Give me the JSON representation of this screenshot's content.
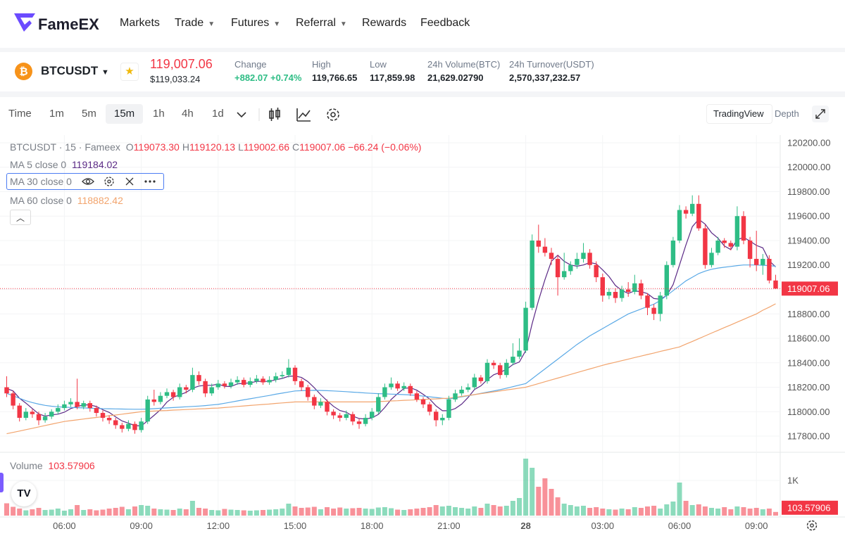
{
  "nav": {
    "brand": "FameEX",
    "items": [
      "Markets",
      "Trade",
      "Futures",
      "Referral",
      "Rewards",
      "Feedback"
    ]
  },
  "ticker": {
    "symbol": "BTCUSDT",
    "price": "119,007.06",
    "price_usd": "$119,033.24",
    "change_label": "Change",
    "change_value": "+882.07",
    "change_pct": "+0.74%",
    "stats": [
      {
        "label": "High",
        "value": "119,766.65"
      },
      {
        "label": "Low",
        "value": "117,859.98"
      },
      {
        "label": "24h Volume(BTC)",
        "value": "21,629.02790"
      },
      {
        "label": "24h Turnover(USDT)",
        "value": "2,570,337,232.57"
      }
    ]
  },
  "toolbar": {
    "intervals": [
      "Time",
      "1m",
      "5m",
      "15m",
      "1h",
      "4h",
      "1d"
    ],
    "views": [
      "TradingView",
      "Depth"
    ]
  },
  "chart_data": {
    "type": "candlestick",
    "title": "BTCUSDT · 15 · Fameex",
    "ohlc_legend": [
      {
        "key": "O",
        "value": "119073.30"
      },
      {
        "key": "H",
        "value": "119120.13"
      },
      {
        "key": "L",
        "value": "119002.66"
      },
      {
        "key": "C",
        "value": "119007.06"
      }
    ],
    "change": "−66.24 (−0.06%)",
    "up_color": "#2ebd85",
    "down_color": "#f23645",
    "candles": {
      "open": [
        118200,
        118150,
        118050,
        117950,
        118000,
        117980,
        117930,
        117960,
        118000,
        118030,
        118060,
        118080,
        118040,
        118070,
        118030,
        117990,
        117950,
        117930,
        117890,
        117860,
        117900,
        117850,
        117920,
        118100,
        118080,
        118130,
        118160,
        118120,
        118200,
        118180,
        118300,
        118250,
        118150,
        118200,
        118230,
        118210,
        118240,
        118260,
        118220,
        118250,
        118270,
        118240,
        118260,
        118290,
        118300,
        118360,
        118250,
        118200,
        118120,
        118050,
        118080,
        118000,
        117970,
        117950,
        117980,
        117920,
        117900,
        117950,
        118000,
        118120,
        118200,
        118230,
        118190,
        118210,
        118150,
        118100,
        118060,
        118000,
        117930,
        117950,
        118100,
        118150,
        118180,
        118200,
        118280,
        118250,
        118400,
        118380,
        118300,
        118400,
        118450,
        118500,
        118850,
        119400,
        119350,
        119300,
        119250,
        119100,
        119150,
        119200,
        119250,
        119300,
        119200,
        119100,
        118950,
        118980,
        118930,
        119000,
        118980,
        119050,
        118950,
        118850,
        118800,
        118950,
        119200,
        119400,
        119650,
        119620,
        119700,
        119500,
        119200,
        119300,
        119400,
        119380,
        119350,
        119600,
        119400,
        119250,
        119200,
        119250,
        119073.3
      ],
      "high": [
        118290,
        118170,
        118070,
        118030,
        118020,
        118000,
        117990,
        118020,
        118060,
        118090,
        118110,
        118270,
        118090,
        118090,
        118050,
        118010,
        117970,
        117950,
        117910,
        117930,
        117920,
        117950,
        118130,
        118180,
        118160,
        118190,
        118180,
        118230,
        118220,
        118360,
        118330,
        118270,
        118230,
        118260,
        118250,
        118270,
        118290,
        118280,
        118280,
        118300,
        118290,
        118290,
        118320,
        118330,
        118430,
        118380,
        118270,
        118220,
        118140,
        118110,
        118100,
        118020,
        117990,
        118010,
        118000,
        117940,
        117980,
        118030,
        118150,
        118230,
        118280,
        118250,
        118240,
        118230,
        118170,
        118120,
        118080,
        118020,
        117980,
        118130,
        118180,
        118210,
        118230,
        118310,
        118300,
        118430,
        118420,
        118400,
        118430,
        118560,
        118600,
        118900,
        119450,
        119530,
        119420,
        119340,
        119280,
        119300,
        119230,
        119300,
        119380,
        119330,
        119230,
        119130,
        119010,
        119010,
        119030,
        119060,
        119120,
        119080,
        118970,
        118880,
        118980,
        119230,
        119430,
        119690,
        119680,
        119770,
        119770,
        119530,
        119340,
        119430,
        119420,
        119400,
        119680,
        119640,
        119430,
        119480,
        119290,
        119280,
        119120.13
      ],
      "low": [
        118120,
        118020,
        117920,
        117930,
        117950,
        117890,
        117910,
        117940,
        117980,
        118010,
        118040,
        118020,
        118020,
        118000,
        117960,
        117920,
        117900,
        117860,
        117830,
        117840,
        117820,
        117830,
        117900,
        118050,
        118060,
        118110,
        118090,
        118100,
        118150,
        118160,
        118220,
        118120,
        118130,
        118180,
        118190,
        118190,
        118220,
        118200,
        118200,
        118230,
        118220,
        118220,
        118240,
        118270,
        118280,
        118220,
        118170,
        118090,
        118020,
        118030,
        117970,
        117940,
        117920,
        117930,
        117890,
        117860,
        117880,
        117930,
        117980,
        118100,
        118180,
        118170,
        118170,
        118130,
        118080,
        118030,
        117970,
        117880,
        117890,
        117930,
        118080,
        118130,
        118160,
        118180,
        118230,
        118230,
        118350,
        118270,
        118280,
        118380,
        118430,
        118480,
        118830,
        119300,
        119270,
        119200,
        118950,
        119080,
        119120,
        119170,
        119220,
        119170,
        119060,
        118900,
        118920,
        118890,
        118900,
        118940,
        118960,
        118920,
        118790,
        118750,
        118740,
        118920,
        119180,
        119380,
        119580,
        119600,
        119480,
        119170,
        119180,
        119280,
        119340,
        119320,
        119320,
        119370,
        119180,
        119150,
        119120,
        119050,
        119002.66
      ],
      "close": [
        118150,
        118050,
        117950,
        118000,
        117980,
        117930,
        117960,
        118000,
        118030,
        118060,
        118080,
        118040,
        118070,
        118030,
        117990,
        117950,
        117930,
        117890,
        117860,
        117900,
        117850,
        117920,
        118100,
        118080,
        118130,
        118160,
        118120,
        118200,
        118180,
        118300,
        118250,
        118150,
        118200,
        118230,
        118210,
        118240,
        118260,
        118220,
        118250,
        118270,
        118240,
        118260,
        118290,
        118300,
        118360,
        118250,
        118200,
        118120,
        118050,
        118080,
        118000,
        117970,
        117950,
        117980,
        117920,
        117900,
        117950,
        118000,
        118120,
        118200,
        118230,
        118190,
        118210,
        118150,
        118100,
        118060,
        118000,
        117930,
        117950,
        118100,
        118150,
        118180,
        118200,
        118280,
        118250,
        118400,
        118380,
        118300,
        118400,
        118450,
        118500,
        118850,
        119400,
        119350,
        119300,
        119250,
        119100,
        119150,
        119200,
        119250,
        119300,
        119200,
        119100,
        118950,
        118980,
        118930,
        119000,
        118980,
        119050,
        118950,
        118850,
        118800,
        118950,
        119200,
        119400,
        119650,
        119620,
        119700,
        119500,
        119200,
        119300,
        119400,
        119380,
        119350,
        119600,
        119400,
        119250,
        119200,
        119250,
        119073.3,
        119007.06
      ],
      "volume": [
        350,
        250,
        200,
        150,
        180,
        220,
        160,
        170,
        200,
        140,
        180,
        300,
        160,
        180,
        150,
        170,
        200,
        220,
        250,
        180,
        260,
        300,
        280,
        200,
        180,
        170,
        160,
        200,
        180,
        420,
        220,
        200,
        160,
        150,
        190,
        170,
        160,
        150,
        140,
        150,
        160,
        170,
        180,
        200,
        340,
        260,
        220,
        230,
        250,
        180,
        240,
        200,
        230,
        200,
        210,
        220,
        200,
        190,
        230,
        240,
        210,
        170,
        160,
        180,
        200,
        220,
        240,
        300,
        260,
        280,
        240,
        220,
        200,
        260,
        220,
        340,
        300,
        260,
        280,
        420,
        500,
        1620,
        1360,
        820,
        1060,
        760,
        520,
        340,
        300,
        260,
        280,
        220,
        240,
        200,
        180,
        170,
        200,
        180,
        240,
        220,
        260,
        280,
        200,
        320,
        400,
        940,
        420,
        300,
        320,
        260,
        220,
        200,
        240,
        180,
        260,
        240,
        200,
        220,
        180,
        200,
        103.57906
      ]
    },
    "ma": [
      {
        "name": "MA 5 close 0",
        "value_label": "119184.02",
        "color": "#5b2a86",
        "values": [
          118190,
          118170,
          118110,
          118070,
          118026,
          117982,
          117964,
          117974,
          117980,
          117996,
          118026,
          118042,
          118056,
          118056,
          118042,
          118016,
          117994,
          117958,
          117924,
          117906,
          117886,
          117884,
          117926,
          117970,
          118016,
          118078,
          118118,
          118138,
          118158,
          118192,
          118210,
          118216,
          118216,
          118226,
          118208,
          118206,
          118228,
          118232,
          118236,
          118248,
          118248,
          118248,
          118262,
          118272,
          118290,
          118292,
          118280,
          118246,
          118196,
          118140,
          118090,
          118044,
          118010,
          117996,
          117964,
          117944,
          117940,
          117950,
          117978,
          118034,
          118100,
          118148,
          118190,
          118196,
          118176,
          118142,
          118104,
          118048,
          118008,
          118008,
          118026,
          118062,
          118116,
          118182,
          118212,
          118262,
          118302,
          118322,
          118346,
          118386,
          118406,
          118500,
          118720,
          118910,
          119080,
          119230,
          119280,
          119230,
          119200,
          119190,
          119200,
          119220,
          119210,
          119160,
          119106,
          119032,
          118992,
          118968,
          118988,
          118982,
          118966,
          118926,
          118920,
          118950,
          119040,
          119200,
          119364,
          119514,
          119574,
          119534,
          119464,
          119420,
          119356,
          119326,
          119406,
          119426,
          119396,
          119360,
          119340,
          119235,
          119184.02
        ]
      },
      {
        "name": "MA 30 close 0",
        "color": "#5aa9e6",
        "values": [
          118150,
          118130,
          118110,
          118090,
          118075,
          118062,
          118052,
          118045,
          118040,
          118037,
          118035,
          118033,
          118031,
          118029,
          118027,
          118025,
          118024,
          118023,
          118022,
          118021,
          118020,
          118020,
          118022,
          118025,
          118028,
          118031,
          118034,
          118037,
          118040,
          118043,
          118046,
          118050,
          118055,
          118060,
          118069,
          118078,
          118088,
          118097,
          118106,
          118115,
          118124,
          118133,
          118143,
          118152,
          118161,
          118170,
          118172,
          118174,
          118175,
          118174,
          118172,
          118170,
          118167,
          118164,
          118160,
          118157,
          118153,
          118150,
          118148,
          118146,
          118144,
          118142,
          118140,
          118137,
          118133,
          118128,
          118122,
          118116,
          118110,
          118105,
          118113,
          118122,
          118130,
          118140,
          118150,
          118160,
          118170,
          118180,
          118192,
          118205,
          118218,
          118230,
          118270,
          118310,
          118350,
          118390,
          118430,
          118470,
          118510,
          118550,
          118585,
          118620,
          118650,
          118680,
          118710,
          118740,
          118770,
          118800,
          118820,
          118840,
          118860,
          118880,
          118910,
          118950,
          118990,
          119030,
          119070,
          119100,
          119130,
          119150,
          119165,
          119175,
          119182,
          119188,
          119195,
          119200,
          119200,
          119200,
          119198,
          119195,
          119190
        ]
      },
      {
        "name": "MA 60 close 0",
        "value_label": "118882.42",
        "color": "#f2a46d",
        "values": [
          117820,
          117831,
          117842,
          117853,
          117864,
          117876,
          117887,
          117898,
          117909,
          117920,
          117927,
          117933,
          117940,
          117947,
          117953,
          117960,
          117967,
          117973,
          117980,
          117987,
          117993,
          118000,
          118003,
          118005,
          118008,
          118010,
          118013,
          118015,
          118018,
          118020,
          118023,
          118025,
          118028,
          118030,
          118034,
          118038,
          118043,
          118047,
          118051,
          118055,
          118059,
          118063,
          118068,
          118072,
          118076,
          118080,
          118080,
          118080,
          118080,
          118080,
          118080,
          118080,
          118080,
          118080,
          118080,
          118080,
          118080,
          118080,
          118083,
          118085,
          118088,
          118090,
          118093,
          118095,
          118098,
          118100,
          118103,
          118105,
          118108,
          118110,
          118118,
          118125,
          118133,
          118140,
          118148,
          118155,
          118163,
          118170,
          118178,
          118185,
          118193,
          118200,
          118215,
          118230,
          118245,
          118260,
          118275,
          118290,
          118305,
          118320,
          118335,
          118350,
          118365,
          118380,
          118393,
          118405,
          118418,
          118430,
          118443,
          118455,
          118468,
          118480,
          118493,
          118505,
          118518,
          118530,
          118553,
          118575,
          118598,
          118620,
          118643,
          118665,
          118688,
          118710,
          118733,
          118755,
          118778,
          118800,
          118830,
          118855,
          118882.42
        ]
      }
    ],
    "ylim": [
      117668,
      120263
    ],
    "yticks": [
      {
        "value": 117800,
        "label": "117800.00"
      },
      {
        "value": 118000,
        "label": "118000.00"
      },
      {
        "value": 118200,
        "label": "118200.00"
      },
      {
        "value": 118400,
        "label": "118400.00"
      },
      {
        "value": 118600,
        "label": "118600.00"
      },
      {
        "value": 118800,
        "label": "118800.00"
      },
      {
        "value": 119000,
        "label": "119000.00"
      },
      {
        "value": 119200,
        "label": "119200.00"
      },
      {
        "value": 119400,
        "label": "119400.00"
      },
      {
        "value": 119600,
        "label": "119600.00"
      },
      {
        "value": 119800,
        "label": "119800.00"
      },
      {
        "value": 120000,
        "label": "120000.00"
      },
      {
        "value": 120200,
        "label": "120200.00"
      }
    ],
    "last_price_label": "119007.06",
    "volume_title": "Volume",
    "volume_label": "103.57906",
    "volume_ylim": [
      0,
      1760
    ],
    "volume_yticks": [
      {
        "value": 1000,
        "label": "1K"
      }
    ],
    "time_labels": [
      "06:00",
      "09:00",
      "12:00",
      "15:00",
      "18:00",
      "21:00",
      "28",
      "03:00",
      "06:00",
      "09:00"
    ],
    "grid": true
  }
}
